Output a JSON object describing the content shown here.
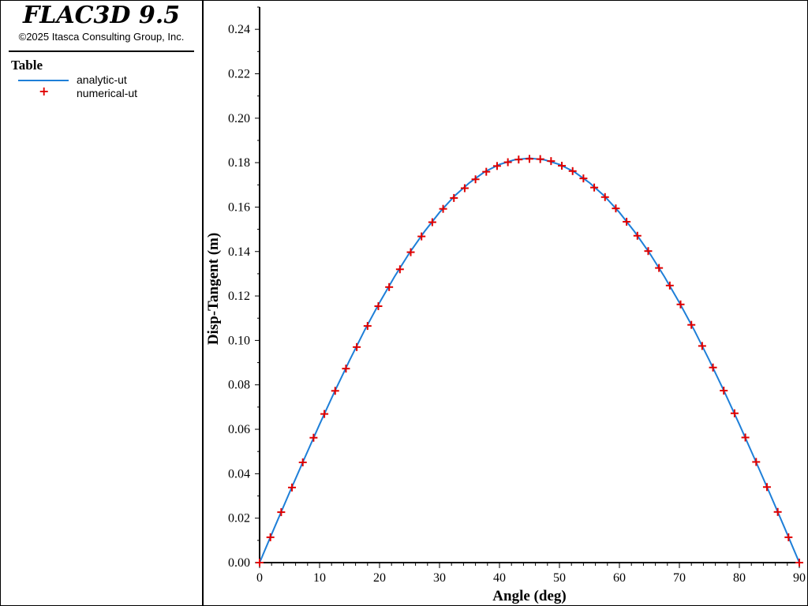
{
  "app": {
    "title": "FLAC3D 9.5",
    "copyright": "©2025 Itasca Consulting Group, Inc."
  },
  "legend": {
    "heading": "Table",
    "entries": [
      {
        "label": "analytic-ut",
        "style": "line",
        "color": "#1e7fd8"
      },
      {
        "label": "numerical-ut",
        "style": "plus",
        "color": "#e00000"
      }
    ]
  },
  "chart_data": {
    "type": "line",
    "xlabel": "Angle (deg)",
    "ylabel": "Disp-Tangent (m)",
    "xlim": [
      0,
      90
    ],
    "ylim": [
      0,
      0.25
    ],
    "xticks": [
      "0",
      "10",
      "20",
      "30",
      "40",
      "50",
      "60",
      "70",
      "80",
      "90"
    ],
    "yticks": [
      "0.00",
      "0.02",
      "0.04",
      "0.06",
      "0.08",
      "0.10",
      "0.12",
      "0.14",
      "0.16",
      "0.18",
      "0.20",
      "0.22",
      "0.24"
    ],
    "grid": false,
    "legend_position": "left-panel",
    "series": [
      {
        "name": "analytic-ut",
        "style": "line",
        "color": "#1e7fd8",
        "x": [
          0,
          2.5,
          5,
          7.5,
          10,
          12.5,
          15,
          17.5,
          20,
          22.5,
          25,
          27.5,
          30,
          32.5,
          35,
          37.5,
          40,
          42.5,
          45,
          47.5,
          50,
          52.5,
          55,
          57.5,
          60,
          62.5,
          65,
          67.5,
          70,
          72.5,
          75,
          77.5,
          80,
          82.5,
          85,
          87.5,
          90
        ],
        "y": [
          0,
          0.0159,
          0.0316,
          0.047,
          0.0622,
          0.0769,
          0.091,
          0.1045,
          0.117,
          0.1287,
          0.1394,
          0.149,
          0.1576,
          0.165,
          0.171,
          0.1758,
          0.1792,
          0.1813,
          0.182,
          0.1813,
          0.1792,
          0.1758,
          0.171,
          0.165,
          0.1576,
          0.149,
          0.1394,
          0.1287,
          0.117,
          0.1045,
          0.091,
          0.0769,
          0.0622,
          0.047,
          0.0316,
          0.0159,
          0
        ]
      },
      {
        "name": "numerical-ut",
        "style": "plus",
        "color": "#e00000",
        "x": [
          0,
          1.8,
          3.6,
          5.4,
          7.2,
          9.0,
          10.8,
          12.6,
          14.4,
          16.2,
          18.0,
          19.8,
          21.6,
          23.4,
          25.2,
          27.0,
          28.8,
          30.6,
          32.4,
          34.2,
          36.0,
          37.8,
          39.6,
          41.4,
          43.2,
          45.0,
          46.8,
          48.6,
          50.4,
          52.2,
          54.0,
          55.8,
          57.6,
          59.4,
          61.2,
          63.0,
          64.8,
          66.6,
          68.4,
          70.2,
          72.0,
          73.8,
          75.6,
          77.4,
          79.2,
          81.0,
          82.8,
          84.6,
          86.4,
          88.2,
          90.0
        ],
        "y": [
          0,
          0.0114,
          0.0227,
          0.0338,
          0.0451,
          0.0562,
          0.0669,
          0.0773,
          0.0873,
          0.097,
          0.1065,
          0.1154,
          0.124,
          0.132,
          0.1397,
          0.1468,
          0.1532,
          0.1592,
          0.1641,
          0.1685,
          0.1725,
          0.1759,
          0.1785,
          0.1802,
          0.1814,
          0.1817,
          0.1816,
          0.1807,
          0.1786,
          0.1762,
          0.1729,
          0.1688,
          0.1645,
          0.1594,
          0.1534,
          0.1471,
          0.1402,
          0.1326,
          0.1247,
          0.1162,
          0.107,
          0.0975,
          0.0878,
          0.0774,
          0.0672,
          0.0563,
          0.0453,
          0.034,
          0.0228,
          0.0114,
          0
        ]
      }
    ]
  }
}
